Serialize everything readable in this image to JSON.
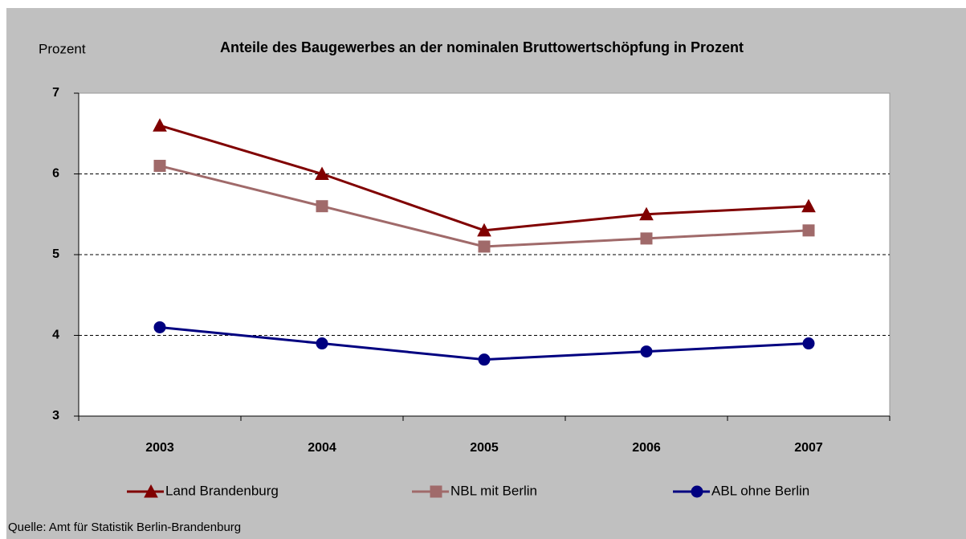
{
  "chart_data": {
    "type": "line",
    "title": "Anteile des Baugewerbes an der nominalen Bruttowertschöpfung in Prozent",
    "y_label": "Prozent",
    "source": "Quelle: Amt für Statistik Berlin-Brandenburg",
    "categories": [
      "2003",
      "2004",
      "2005",
      "2006",
      "2007"
    ],
    "series": [
      {
        "name": "Land Brandenburg",
        "color": "#800000",
        "marker": "triangle",
        "values": [
          6.6,
          6.0,
          5.3,
          5.5,
          5.6
        ]
      },
      {
        "name": "NBL mit Berlin",
        "color": "#a06a6a",
        "marker": "square",
        "values": [
          6.1,
          5.6,
          5.1,
          5.2,
          5.3
        ]
      },
      {
        "name": "ABL ohne Berlin",
        "color": "#000080",
        "marker": "circle",
        "values": [
          4.1,
          3.9,
          3.7,
          3.8,
          3.9
        ]
      }
    ],
    "ylim": [
      3,
      7
    ],
    "yticks": [
      3,
      4,
      5,
      6,
      7
    ],
    "grid": true,
    "legend": "bottom"
  }
}
